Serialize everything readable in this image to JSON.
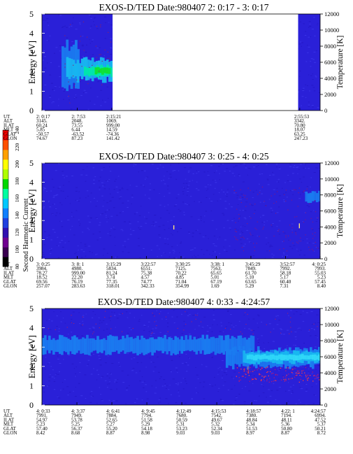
{
  "colorbar": {
    "title": "Second Harmonic Current",
    "ticks": [
      "80",
      "100",
      "120",
      "140",
      "160",
      "180",
      "200",
      "220",
      "240"
    ],
    "colors": [
      "#000000",
      "#3a0050",
      "#700090",
      "#3010b0",
      "#2040e0",
      "#1080ff",
      "#00c8ff",
      "#00ffa0",
      "#00d800",
      "#b0ff00",
      "#ffff00",
      "#ffa000",
      "#ff5000",
      "#ff0000"
    ]
  },
  "chart_data": [
    {
      "type": "heatmap",
      "title": "EXOS-D/TED   Date:980407  2: 0:17 - 3: 0:17",
      "ylabel": "Energy [eV]",
      "y2label": "Temperature [K]",
      "ylim": [
        0,
        5
      ],
      "yticks": [
        "0",
        "1",
        "2",
        "3",
        "4",
        "5"
      ],
      "y2lim": [
        0,
        12000
      ],
      "y2ticks": [
        "0",
        "2000",
        "4000",
        "6000",
        "8000",
        "10000",
        "12000"
      ],
      "time_range_s": [
        17,
        3617
      ],
      "data_gaps_s": [
        [
          931,
          3332
        ]
      ],
      "background_color": "#2a20d8",
      "bands": [
        {
          "t0": 270,
          "t1": 500,
          "e0": 1.2,
          "e1": 3.4,
          "color": "#1a7cf0"
        },
        {
          "t0": 330,
          "t1": 931,
          "e0": 1.6,
          "e1": 2.6,
          "color": "#18b8f0"
        },
        {
          "t0": 560,
          "t1": 931,
          "e0": 1.8,
          "e1": 2.3,
          "color": "#00e8a8"
        },
        {
          "t0": 700,
          "t1": 900,
          "e0": 1.9,
          "e1": 2.2,
          "color": "#10e030"
        }
      ],
      "annotation_rows": [
        {
          "label": "UT",
          "values": [
            "2: 0:17",
            "2: 7:53",
            "2:15:21",
            "2:55:53"
          ]
        },
        {
          "label": "ALT",
          "values": [
            "3145.",
            "2048.",
            "1069.",
            "3342."
          ]
        },
        {
          "label": "ILAT",
          "values": [
            "60.24",
            "73.55",
            "999.00",
            "70.80"
          ]
        },
        {
          "label": "MLT",
          "values": [
            "5.85",
            "6.44",
            "14.59",
            "18.07"
          ]
        },
        {
          "label": "GLAT",
          "values": [
            "-50.57",
            "-63.52",
            "-74.36",
            "63.25"
          ]
        },
        {
          "label": "GLON",
          "values": [
            "74.67",
            "87.23",
            "141.42",
            "247.23"
          ]
        }
      ],
      "annotation_times_s": [
        17,
        473,
        921,
        3353
      ]
    },
    {
      "type": "heatmap",
      "title": "EXOS-D/TED   Date:980407  3: 0:25 - 4: 0:25",
      "ylabel": "Energy [eV]",
      "y2label": "Temperature [K]",
      "ylim": [
        0,
        5
      ],
      "yticks": [
        "0",
        "1",
        "2",
        "3",
        "4",
        "5"
      ],
      "y2lim": [
        0,
        12000
      ],
      "y2ticks": [
        "0",
        "2000",
        "4000",
        "6000",
        "8000",
        "10000",
        "12000"
      ],
      "time_range_s": [
        25,
        3625
      ],
      "data_gaps_s": [],
      "background_color": "#2a20d8",
      "bands": [
        {
          "t0": 3430,
          "t1": 3625,
          "e0": 3.0,
          "e1": 3.5,
          "color": "#1a7cf0"
        }
      ],
      "annotation_rows": [
        {
          "label": "UT",
          "values": [
            "3: 0:25",
            "3: 8: 1",
            "3:15:29",
            "3:22:57",
            "3:30:25",
            "3:38: 1",
            "3:45:29",
            "3:52:57",
            "4: 0:25"
          ]
        },
        {
          "label": "ALT",
          "values": [
            "3984.",
            "4980.",
            "5834.",
            "6551.",
            "7125.",
            "7563.",
            "7849.",
            "7992.",
            "7993."
          ]
        },
        {
          "label": "ILAT",
          "values": [
            "78.27",
            "999.00",
            "81.24",
            "75.38",
            "70.22",
            "65.65",
            "61.70",
            "58.18",
            "55.03"
          ]
        },
        {
          "label": "MLT",
          "values": [
            "18.52",
            "22.20",
            "3.74",
            "4.57",
            "4.85",
            "5.01",
            "5.10",
            "5.17",
            "5.23"
          ]
        },
        {
          "label": "GLAT",
          "values": [
            "69.56",
            "76.19",
            "77.35",
            "74.77",
            "71.04",
            "67.19",
            "63.65",
            "60.40",
            "57.45"
          ]
        },
        {
          "label": "GLON",
          "values": [
            "257.07",
            "283.63",
            "318.01",
            "342.33",
            "354.99",
            "1.69",
            "5.29",
            "7.31",
            "8.40"
          ]
        }
      ],
      "annotation_times_s": [
        25,
        481,
        929,
        1377,
        1825,
        2281,
        2729,
        3177,
        3625
      ]
    },
    {
      "type": "heatmap",
      "title": "EXOS-D/TED   Date:980407  4: 0:33 - 4:24:57",
      "ylabel": "Energy [eV]",
      "y2label": "Temperature [K]",
      "ylim": [
        0,
        5
      ],
      "yticks": [
        "0",
        "1",
        "2",
        "3",
        "4",
        "5"
      ],
      "y2lim": [
        0,
        12000
      ],
      "y2ticks": [
        "0",
        "2000",
        "4000",
        "6000",
        "8000",
        "10000",
        "12000"
      ],
      "time_range_s": [
        33,
        1497
      ],
      "data_gaps_s": [],
      "background_color": "#2a20d8",
      "bands": [
        {
          "t0": 33,
          "t1": 1150,
          "e0": 2.7,
          "e1": 3.5,
          "color": "#1a7cf0"
        },
        {
          "t0": 1000,
          "t1": 1497,
          "e0": 2.0,
          "e1": 2.9,
          "color": "#1a7cf0"
        },
        {
          "t0": 1090,
          "t1": 1497,
          "e0": 2.2,
          "e1": 2.75,
          "color": "#18b8f0"
        },
        {
          "t0": 1110,
          "t1": 1497,
          "e0": 2.35,
          "e1": 2.6,
          "color": "#30d8f8"
        }
      ],
      "annotation_rows": [
        {
          "label": "UT",
          "values": [
            "4: 0:33",
            "4: 3:37",
            "4: 6:41",
            "4: 9:45",
            "4:12:49",
            "4:15:53",
            "4:18:57",
            "4:22: 1",
            "4:24:57"
          ]
        },
        {
          "label": "ALT",
          "values": [
            "7991.",
            "7949.",
            "7884.",
            "7794.",
            "7680.",
            "7542.",
            "7380.",
            "7194.",
            "6994."
          ]
        },
        {
          "label": "ILAT",
          "values": [
            "54.97",
            "53.78",
            "52.65",
            "51.58",
            "50.59",
            "49.67",
            "48.84",
            "48.11",
            "47.52"
          ]
        },
        {
          "label": "MLT",
          "values": [
            "5.23",
            "5.25",
            "5.27",
            "5.29",
            "5.31",
            "5.32",
            "5.34",
            "5.36",
            "5.37"
          ]
        },
        {
          "label": "GLAT",
          "values": [
            "57.40",
            "56.37",
            "55.20",
            "54.18",
            "53.23",
            "52.34",
            "51.53",
            "50.80",
            "50.21"
          ]
        },
        {
          "label": "GLON",
          "values": [
            "8.42",
            "8.68",
            "8.87",
            "8.98",
            "9.03",
            "9.03",
            "8.97",
            "8.87",
            "8.72"
          ]
        }
      ],
      "annotation_times_s": [
        33,
        217,
        401,
        585,
        769,
        953,
        1137,
        1321,
        1497
      ]
    }
  ]
}
